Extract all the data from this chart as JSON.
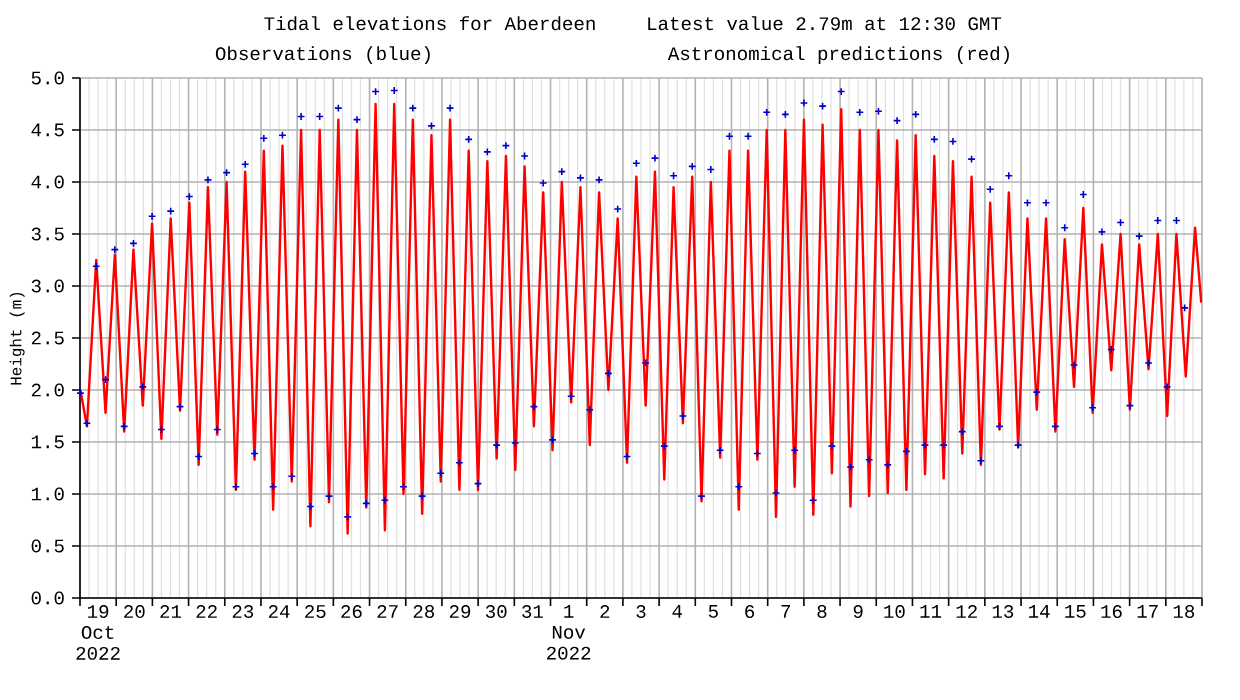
{
  "chart_data": {
    "type": "line",
    "title": "Tidal elevations for Aberdeen",
    "annotations": [
      "Latest value 2.79m at 12:30 GMT"
    ],
    "ylabel": "Height (m)",
    "xlim": [
      "2022-10-19T00:00",
      "2022-11-19T00:00"
    ],
    "ylim": [
      0,
      5
    ],
    "yticks": [
      {
        "value": 0,
        "label": "0.0"
      },
      {
        "value": 0.5,
        "label": "0.5"
      },
      {
        "value": 1,
        "label": "1.0"
      },
      {
        "value": 1.5,
        "label": "1.5"
      },
      {
        "value": 2,
        "label": "2.0"
      },
      {
        "value": 2.5,
        "label": "2.5"
      },
      {
        "value": 3,
        "label": "3.0"
      },
      {
        "value": 3.5,
        "label": "3.5"
      },
      {
        "value": 4,
        "label": "4.0"
      },
      {
        "value": 4.5,
        "label": "4.5"
      },
      {
        "value": 5,
        "label": "5.0"
      }
    ],
    "xticks": [
      {
        "value": "2022-10-19T00:00",
        "label": null
      },
      {
        "value": "2022-10-20T00:00",
        "label": null
      },
      {
        "value": "2022-10-21T00:00",
        "label": null
      },
      {
        "value": "2022-10-22T00:00",
        "label": null
      },
      {
        "value": "2022-10-23T00:00",
        "label": null
      },
      {
        "value": "2022-10-24T00:00",
        "label": null
      },
      {
        "value": "2022-10-25T00:00",
        "label": null
      },
      {
        "value": "2022-10-26T00:00",
        "label": null
      },
      {
        "value": "2022-10-27T00:00",
        "label": null
      },
      {
        "value": "2022-10-28T00:00",
        "label": null
      },
      {
        "value": "2022-10-29T00:00",
        "label": null
      },
      {
        "value": "2022-10-30T00:00",
        "label": null
      },
      {
        "value": "2022-10-31T00:00",
        "label": null
      },
      {
        "value": "2022-11-01T00:00",
        "label": null
      },
      {
        "value": "2022-11-02T00:00",
        "label": null
      },
      {
        "value": "2022-11-03T00:00",
        "label": null
      },
      {
        "value": "2022-11-04T00:00",
        "label": null
      },
      {
        "value": "2022-11-05T00:00",
        "label": null
      },
      {
        "value": "2022-11-06T00:00",
        "label": null
      },
      {
        "value": "2022-11-07T00:00",
        "label": null
      },
      {
        "value": "2022-11-08T00:00",
        "label": null
      },
      {
        "value": "2022-11-09T00:00",
        "label": null
      },
      {
        "value": "2022-11-10T00:00",
        "label": null
      },
      {
        "value": "2022-11-11T00:00",
        "label": null
      },
      {
        "value": "2022-11-12T00:00",
        "label": null
      },
      {
        "value": "2022-11-13T00:00",
        "label": null
      },
      {
        "value": "2022-11-14T00:00",
        "label": null
      },
      {
        "value": "2022-11-15T00:00",
        "label": null
      },
      {
        "value": "2022-11-16T00:00",
        "label": null
      },
      {
        "value": "2022-11-17T00:00",
        "label": null
      },
      {
        "value": "2022-11-18T00:00",
        "label": null
      },
      {
        "value": "2022-11-19T00:00",
        "label": null
      },
      {
        "value": "2022-10-19T12:00",
        "label": "19 Oct 2022"
      },
      {
        "value": "2022-10-20T12:00",
        "label": "20"
      },
      {
        "value": "2022-10-21T12:00",
        "label": "21"
      },
      {
        "value": "2022-10-22T12:00",
        "label": "22"
      },
      {
        "value": "2022-10-23T12:00",
        "label": "23"
      },
      {
        "value": "2022-10-24T12:00",
        "label": "24"
      },
      {
        "value": "2022-10-25T12:00",
        "label": "25"
      },
      {
        "value": "2022-10-26T12:00",
        "label": "26"
      },
      {
        "value": "2022-10-27T12:00",
        "label": "27"
      },
      {
        "value": "2022-10-28T12:00",
        "label": "28"
      },
      {
        "value": "2022-10-29T12:00",
        "label": "29"
      },
      {
        "value": "2022-10-30T12:00",
        "label": "30"
      },
      {
        "value": "2022-10-31T12:00",
        "label": "31"
      },
      {
        "value": "2022-11-01T12:00",
        "label": "1 Nov 2022"
      },
      {
        "value": "2022-11-02T12:00",
        "label": "2"
      },
      {
        "value": "2022-11-03T12:00",
        "label": "3"
      },
      {
        "value": "2022-11-04T12:00",
        "label": "4"
      },
      {
        "value": "2022-11-05T12:00",
        "label": "5"
      },
      {
        "value": "2022-11-06T12:00",
        "label": "6"
      },
      {
        "value": "2022-11-07T12:00",
        "label": "7"
      },
      {
        "value": "2022-11-08T12:00",
        "label": "8"
      },
      {
        "value": "2022-11-09T12:00",
        "label": "9"
      },
      {
        "value": "2022-11-10T12:00",
        "label": "10"
      },
      {
        "value": "2022-11-11T12:00",
        "label": "11"
      },
      {
        "value": "2022-11-12T12:00",
        "label": "12"
      },
      {
        "value": "2022-11-13T12:00",
        "label": "13"
      },
      {
        "value": "2022-11-14T12:00",
        "label": "14"
      },
      {
        "value": "2022-11-15T12:00",
        "label": "15"
      },
      {
        "value": "2022-11-16T12:00",
        "label": "16"
      },
      {
        "value": "2022-11-17T12:00",
        "label": "17"
      },
      {
        "value": "2022-11-18T12:00",
        "label": "18"
      }
    ],
    "grid": true,
    "series": [
      {
        "name": "Observations (blue)",
        "type": "scatter",
        "marker": "cross",
        "color": "#0000cc",
        "x": [
          "2022-10-19T00:15",
          "2022-10-19T04:35",
          "2022-10-19T10:45",
          "2022-10-19T16:56",
          "2022-10-19T23:06",
          "2022-10-20T05:17",
          "2022-10-20T11:27",
          "2022-10-20T17:38",
          "2022-10-20T23:48",
          "2022-10-21T05:59",
          "2022-10-21T12:09",
          "2022-10-21T18:20",
          "2022-10-22T00:30",
          "2022-10-22T06:41",
          "2022-10-22T12:51",
          "2022-10-22T19:02",
          "2022-10-23T01:12",
          "2022-10-23T07:23",
          "2022-10-23T13:33",
          "2022-10-23T19:44",
          "2022-10-24T01:54",
          "2022-10-24T08:05",
          "2022-10-24T14:15",
          "2022-10-24T20:26",
          "2022-10-25T02:36",
          "2022-10-25T08:47",
          "2022-10-25T14:57",
          "2022-10-25T21:08",
          "2022-10-26T03:18",
          "2022-10-26T09:29",
          "2022-10-26T15:39",
          "2022-10-26T21:50",
          "2022-10-27T04:00",
          "2022-10-27T10:11",
          "2022-10-27T16:21",
          "2022-10-27T22:32",
          "2022-10-28T04:42",
          "2022-10-28T10:53",
          "2022-10-28T17:03",
          "2022-10-28T23:14",
          "2022-10-29T05:24",
          "2022-10-29T11:35",
          "2022-10-29T17:45",
          "2022-10-29T23:56",
          "2022-10-30T06:06",
          "2022-10-30T12:17",
          "2022-10-30T18:27",
          "2022-10-31T00:38",
          "2022-10-31T06:48",
          "2022-10-31T12:59",
          "2022-10-31T19:09",
          "2022-11-01T01:20",
          "2022-11-01T07:30",
          "2022-11-01T13:41",
          "2022-11-01T19:51",
          "2022-11-02T02:02",
          "2022-11-02T08:12",
          "2022-11-02T14:23",
          "2022-11-02T20:33",
          "2022-11-03T02:44",
          "2022-11-03T08:54",
          "2022-11-03T15:05",
          "2022-11-03T21:15",
          "2022-11-04T03:26",
          "2022-11-04T09:36",
          "2022-11-04T15:47",
          "2022-11-04T21:57",
          "2022-11-05T04:08",
          "2022-11-05T10:18",
          "2022-11-05T16:29",
          "2022-11-05T22:39",
          "2022-11-06T04:50",
          "2022-11-06T11:00",
          "2022-11-06T17:11",
          "2022-11-06T23:21",
          "2022-11-07T05:32",
          "2022-11-07T11:42",
          "2022-11-07T17:53",
          "2022-11-08T00:03",
          "2022-11-08T06:14",
          "2022-11-08T12:24",
          "2022-11-08T18:35",
          "2022-11-09T00:45",
          "2022-11-09T06:56",
          "2022-11-09T13:06",
          "2022-11-09T19:17",
          "2022-11-10T01:27",
          "2022-11-10T07:38",
          "2022-11-10T13:48",
          "2022-11-10T19:59",
          "2022-11-11T02:09",
          "2022-11-11T08:20",
          "2022-11-11T14:30",
          "2022-11-11T20:41",
          "2022-11-12T02:51",
          "2022-11-12T09:02",
          "2022-11-12T15:12",
          "2022-11-12T21:23",
          "2022-11-13T03:33",
          "2022-11-13T09:44",
          "2022-11-13T15:54",
          "2022-11-13T22:05",
          "2022-11-14T04:15",
          "2022-11-14T10:26",
          "2022-11-14T16:36",
          "2022-11-14T22:47",
          "2022-11-15T04:57",
          "2022-11-15T11:08",
          "2022-11-15T17:18",
          "2022-11-15T23:29",
          "2022-11-16T05:39",
          "2022-11-16T11:50",
          "2022-11-16T18:00",
          "2022-11-17T00:11",
          "2022-11-17T06:21",
          "2022-11-17T12:32",
          "2022-11-17T18:42",
          "2022-11-18T00:53",
          "2022-11-18T07:03",
          "2022-11-18T12:30"
        ],
        "values": [
          1.97,
          1.68,
          3.19,
          2.1,
          3.35,
          1.65,
          3.41,
          2.03,
          3.67,
          1.62,
          3.72,
          1.84,
          3.86,
          1.36,
          4.02,
          1.62,
          4.09,
          1.07,
          4.17,
          1.39,
          4.42,
          1.07,
          4.45,
          1.17,
          4.63,
          0.88,
          4.63,
          0.98,
          4.71,
          0.78,
          4.6,
          0.91,
          4.87,
          0.94,
          4.88,
          1.07,
          4.71,
          0.98,
          4.54,
          1.2,
          4.71,
          1.3,
          4.41,
          1.1,
          4.29,
          1.47,
          4.35,
          1.49,
          4.25,
          1.84,
          3.99,
          1.52,
          4.1,
          1.94,
          4.04,
          1.81,
          4.02,
          2.16,
          3.74,
          1.36,
          4.18,
          2.26,
          4.23,
          1.46,
          4.06,
          1.75,
          4.15,
          0.98,
          4.12,
          1.42,
          4.44,
          1.07,
          4.44,
          1.39,
          4.67,
          1.01,
          4.65,
          1.42,
          4.76,
          0.94,
          4.73,
          1.46,
          4.87,
          1.26,
          4.67,
          1.33,
          4.68,
          1.28,
          4.59,
          1.41,
          4.65,
          1.47,
          4.41,
          1.47,
          4.39,
          1.6,
          4.22,
          1.32,
          3.93,
          1.65,
          4.06,
          1.47,
          3.8,
          1.98,
          3.8,
          1.65,
          3.56,
          2.24,
          3.88,
          1.83,
          3.52,
          2.39,
          3.61,
          1.85,
          3.48,
          2.26,
          3.63,
          2.03,
          3.63,
          2.79
        ]
      },
      {
        "name": "Astronomical predictions (red)",
        "color": "#ff0000",
        "x": [
          "2022-10-19T00:15",
          "2022-10-19T04:35",
          "2022-10-19T10:45",
          "2022-10-19T16:56",
          "2022-10-19T23:06",
          "2022-10-20T05:17",
          "2022-10-20T11:27",
          "2022-10-20T17:38",
          "2022-10-20T23:48",
          "2022-10-21T05:59",
          "2022-10-21T12:09",
          "2022-10-21T18:20",
          "2022-10-22T00:30",
          "2022-10-22T06:41",
          "2022-10-22T12:51",
          "2022-10-22T19:02",
          "2022-10-23T01:12",
          "2022-10-23T07:23",
          "2022-10-23T13:33",
          "2022-10-23T19:44",
          "2022-10-24T01:54",
          "2022-10-24T08:05",
          "2022-10-24T14:15",
          "2022-10-24T20:26",
          "2022-10-25T02:36",
          "2022-10-25T08:47",
          "2022-10-25T14:57",
          "2022-10-25T21:08",
          "2022-10-26T03:18",
          "2022-10-26T09:29",
          "2022-10-26T15:39",
          "2022-10-26T21:50",
          "2022-10-27T04:00",
          "2022-10-27T10:11",
          "2022-10-27T16:21",
          "2022-10-27T22:32",
          "2022-10-28T04:42",
          "2022-10-28T10:53",
          "2022-10-28T17:03",
          "2022-10-28T23:14",
          "2022-10-29T05:24",
          "2022-10-29T11:35",
          "2022-10-29T17:45",
          "2022-10-29T23:56",
          "2022-10-30T06:06",
          "2022-10-30T12:17",
          "2022-10-30T18:27",
          "2022-10-31T00:38",
          "2022-10-31T06:48",
          "2022-10-31T12:59",
          "2022-10-31T19:09",
          "2022-11-01T01:20",
          "2022-11-01T07:30",
          "2022-11-01T13:41",
          "2022-11-01T19:51",
          "2022-11-02T02:02",
          "2022-11-02T08:12",
          "2022-11-02T14:23",
          "2022-11-02T20:33",
          "2022-11-03T02:44",
          "2022-11-03T08:54",
          "2022-11-03T15:05",
          "2022-11-03T21:15",
          "2022-11-04T03:26",
          "2022-11-04T09:36",
          "2022-11-04T15:47",
          "2022-11-04T21:57",
          "2022-11-05T04:08",
          "2022-11-05T10:18",
          "2022-11-05T16:29",
          "2022-11-05T22:39",
          "2022-11-06T04:50",
          "2022-11-06T11:00",
          "2022-11-06T17:11",
          "2022-11-06T23:21",
          "2022-11-07T05:32",
          "2022-11-07T11:42",
          "2022-11-07T17:53",
          "2022-11-08T00:03",
          "2022-11-08T06:14",
          "2022-11-08T12:24",
          "2022-11-08T18:35",
          "2022-11-09T00:45",
          "2022-11-09T06:56",
          "2022-11-09T13:06",
          "2022-11-09T19:17",
          "2022-11-10T01:27",
          "2022-11-10T07:38",
          "2022-11-10T13:48",
          "2022-11-10T19:59",
          "2022-11-11T02:09",
          "2022-11-11T08:20",
          "2022-11-11T14:30",
          "2022-11-11T20:41",
          "2022-11-12T02:51",
          "2022-11-12T09:02",
          "2022-11-12T15:12",
          "2022-11-12T21:23",
          "2022-11-13T03:33",
          "2022-11-13T09:44",
          "2022-11-13T15:54",
          "2022-11-13T22:05",
          "2022-11-14T04:15",
          "2022-11-14T10:26",
          "2022-11-14T16:36",
          "2022-11-14T22:47",
          "2022-11-15T04:57",
          "2022-11-15T11:08",
          "2022-11-15T17:18",
          "2022-11-15T23:29",
          "2022-11-16T05:39",
          "2022-11-16T11:50",
          "2022-11-16T18:00",
          "2022-11-17T00:11",
          "2022-11-17T06:21",
          "2022-11-17T12:32",
          "2022-11-17T18:42",
          "2022-11-18T00:53",
          "2022-11-18T07:03",
          "2022-11-18T13:14",
          "2022-11-18T19:24",
          "2022-11-18T23:30"
        ],
        "values": [
          2.0,
          1.65,
          3.25,
          1.78,
          3.3,
          1.6,
          3.35,
          1.85,
          3.6,
          1.53,
          3.65,
          1.8,
          3.8,
          1.28,
          3.95,
          1.57,
          4.0,
          1.04,
          4.1,
          1.33,
          4.3,
          0.85,
          4.35,
          1.12,
          4.5,
          0.69,
          4.5,
          0.92,
          4.6,
          0.62,
          4.5,
          0.87,
          4.75,
          0.65,
          4.75,
          1.0,
          4.6,
          0.81,
          4.45,
          1.12,
          4.6,
          1.04,
          4.3,
          1.04,
          4.2,
          1.34,
          4.25,
          1.23,
          4.15,
          1.65,
          3.9,
          1.42,
          4.0,
          1.88,
          3.95,
          1.47,
          3.9,
          2.0,
          3.65,
          1.3,
          4.05,
          1.85,
          4.1,
          1.14,
          3.95,
          1.68,
          4.05,
          0.93,
          4.0,
          1.35,
          4.3,
          0.85,
          4.3,
          1.33,
          4.5,
          0.78,
          4.5,
          1.07,
          4.6,
          0.8,
          4.55,
          1.2,
          4.7,
          0.88,
          4.5,
          0.98,
          4.5,
          1.01,
          4.4,
          1.04,
          4.45,
          1.19,
          4.25,
          1.15,
          4.2,
          1.39,
          4.05,
          1.28,
          3.8,
          1.62,
          3.9,
          1.45,
          3.65,
          1.81,
          3.65,
          1.6,
          3.45,
          2.03,
          3.75,
          1.78,
          3.4,
          2.19,
          3.5,
          1.81,
          3.4,
          2.2,
          3.5,
          1.75,
          3.5,
          2.13,
          3.56,
          2.84
        ]
      }
    ]
  }
}
